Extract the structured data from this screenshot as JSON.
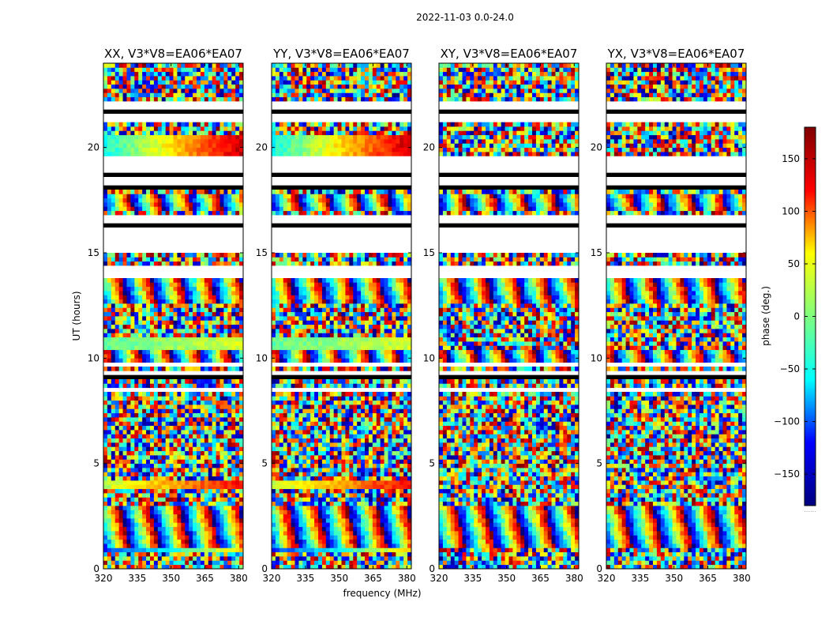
{
  "figure": {
    "suptitle": "2022-11-03 0.0-24.0",
    "colorbar_footer": "......"
  },
  "chart_data": {
    "type": "heatmap",
    "xlabel": "frequency (MHz)",
    "ylabel": "UT (hours)",
    "xlim": [
      320,
      382
    ],
    "ylim": [
      0,
      24
    ],
    "xticks": [
      320,
      335,
      350,
      365,
      380
    ],
    "yticks": [
      0,
      5,
      10,
      15,
      20
    ],
    "colorbar": {
      "label": "phase (deg.)",
      "range": [
        -180,
        180
      ],
      "ticks": [
        150,
        100,
        50,
        0,
        -50,
        -100,
        -150
      ],
      "tick_labels": [
        "150",
        "100",
        "50",
        "0",
        "−50",
        "−100",
        "−150"
      ],
      "colormap": "jet",
      "colors": [
        "#00007f",
        "#0000ff",
        "#00ffff",
        "#7fff7f",
        "#ffff00",
        "#ff0000",
        "#7f0000"
      ]
    },
    "panels": [
      {
        "title": "XX, V3*V8=EA06*EA07",
        "coherent": true
      },
      {
        "title": "YY, V3*V8=EA06*EA07",
        "coherent": true
      },
      {
        "title": "XY, V3*V8=EA06*EA07",
        "coherent": false
      },
      {
        "title": "YX, V3*V8=EA06*EA07",
        "coherent": false
      }
    ],
    "flagged_ut_ranges_hours": [
      [
        21.2,
        22.1
      ],
      [
        18.0,
        19.0
      ],
      [
        16.0,
        16.8
      ],
      [
        14.1,
        14.5
      ],
      [
        9.1,
        9.4
      ]
    ],
    "blank_ut_ranges_hours": [
      [
        22.1,
        22.2
      ],
      [
        19.0,
        19.7
      ],
      [
        15.0,
        16.0
      ],
      [
        13.9,
        14.1
      ],
      [
        9.6,
        9.9
      ],
      [
        8.4,
        8.7
      ]
    ],
    "smooth_phase_bands_ut_hours": [
      {
        "ut": [
          19.7,
          20.6
        ],
        "phase_start": -40,
        "phase_end": 160
      },
      {
        "ut": [
          10.5,
          11.0
        ],
        "phase_start": -10,
        "phase_end": 30
      },
      {
        "ut": [
          3.9,
          4.3
        ],
        "phase_start": 20,
        "phase_end": 140
      },
      {
        "ut": [
          0.8,
          1.0
        ],
        "phase_start": -120,
        "phase_end": 60
      }
    ],
    "fringe_bands_ut_hours": [
      [
        9.6,
        10.4
      ],
      [
        12.6,
        13.8
      ],
      [
        17.0,
        17.8
      ],
      [
        1.0,
        3.0
      ]
    ]
  }
}
